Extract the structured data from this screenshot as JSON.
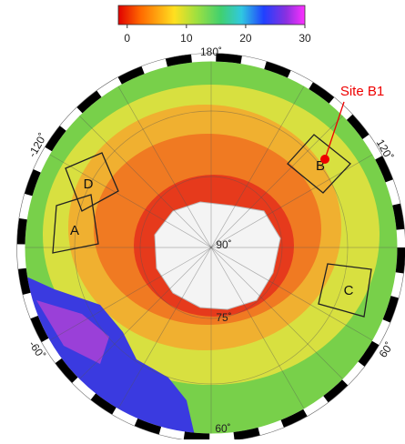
{
  "colorbar": {
    "lim": [
      -1.5,
      30
    ],
    "ticks": [
      0,
      10,
      20,
      30
    ]
  },
  "map": {
    "labels": {
      "lon_top": "180˚",
      "lon_left": "-120˚",
      "lon_right": "120˚",
      "lon_lower_left": "-60˚",
      "lon_lower_right": "60˚",
      "lat_bottom": "60˚",
      "lat_inner": "75˚",
      "pole": "90˚"
    },
    "regions": [
      "D",
      "A",
      "B",
      "C"
    ],
    "site": "Site B1"
  }
}
